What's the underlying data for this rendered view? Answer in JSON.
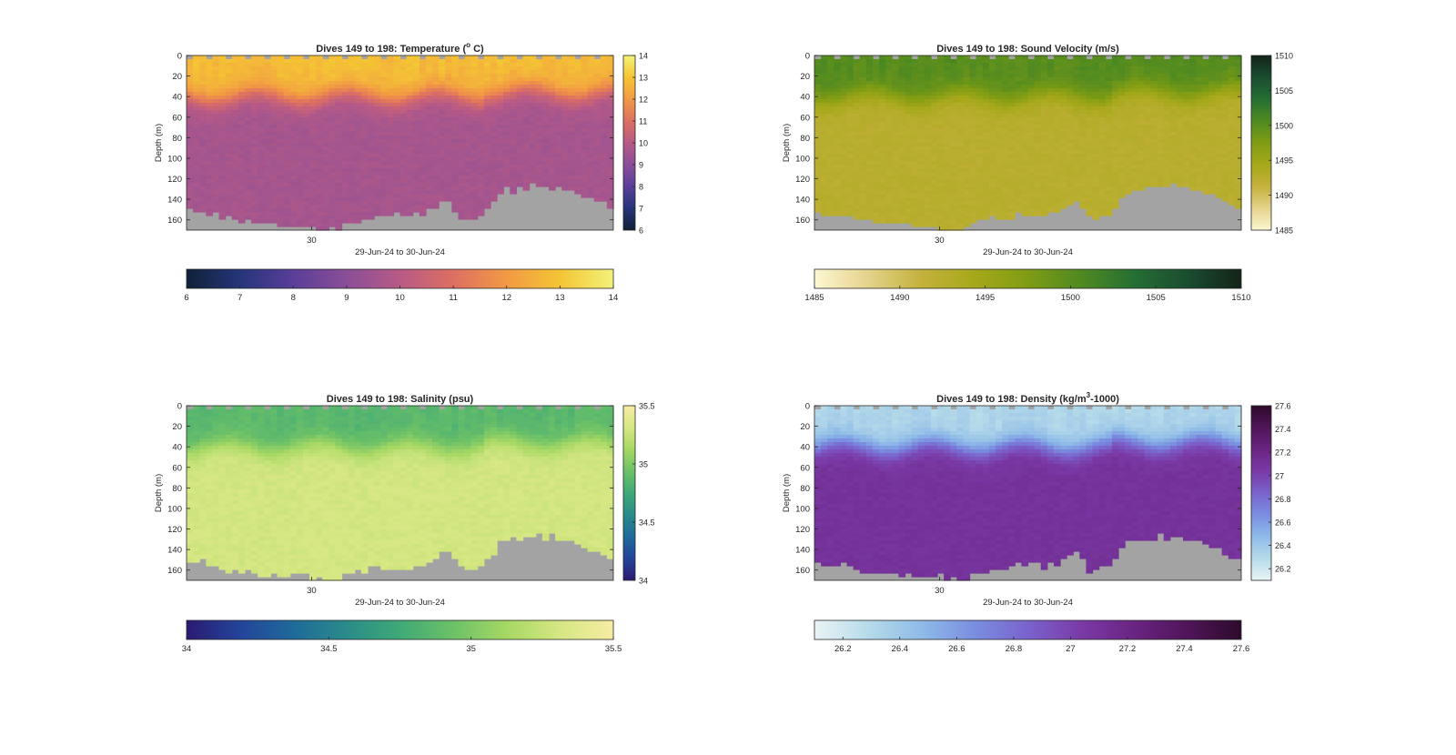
{
  "figure": {
    "date_range_label": "29-Jun-24 to 30-Jun-24",
    "x_tick_label": "30",
    "depth_label": "Depth (m)"
  },
  "chart_data": [
    {
      "id": "temperature",
      "type": "heatmap",
      "title_pre": "Dives 149 to 198: Temperature (",
      "title_sup": "o",
      "title_post": " C)",
      "xlabel": "29-Jun-24 to 30-Jun-24",
      "ylabel": "Depth (m)",
      "x_ticks": [
        "30"
      ],
      "y_ticks": [
        0,
        20,
        40,
        60,
        80,
        100,
        120,
        140,
        160
      ],
      "ylim": [
        0,
        170
      ],
      "dives": [
        149,
        198
      ],
      "colormap": [
        "#0f2136",
        "#25357a",
        "#5a3e99",
        "#8a4e98",
        "#b85a86",
        "#dd6f62",
        "#f29944",
        "#f4c534",
        "#f3f27a"
      ],
      "clim": [
        6,
        14
      ],
      "colorbar_ticks": [
        6,
        7,
        8,
        9,
        10,
        11,
        12,
        13,
        14
      ],
      "profile": {
        "surface": 12.8,
        "thermocline_depth": 40,
        "deep": 9.6
      },
      "nodata_color": "#a3a3a3"
    },
    {
      "id": "sound_velocity",
      "type": "heatmap",
      "title_pre": "Dives 149 to 198: Sound Velocity (m/s)",
      "title_sup": "",
      "title_post": "",
      "xlabel": "29-Jun-24 to 30-Jun-24",
      "ylabel": "Depth (m)",
      "x_ticks": [
        "30"
      ],
      "y_ticks": [
        0,
        20,
        40,
        60,
        80,
        100,
        120,
        140,
        160
      ],
      "ylim": [
        0,
        170
      ],
      "dives": [
        149,
        198
      ],
      "colormap": [
        "#fdf7d2",
        "#e4d38c",
        "#c4b13c",
        "#a6a81a",
        "#7f9c14",
        "#4f8a21",
        "#256e33",
        "#1a4d30",
        "#132318"
      ],
      "clim": [
        1485,
        1510
      ],
      "colorbar_ticks": [
        1485,
        1490,
        1495,
        1500,
        1505,
        1510
      ],
      "profile": {
        "surface": 1500.2,
        "thermocline_depth": 40,
        "deep": 1492.5
      },
      "nodata_color": "#a3a3a3"
    },
    {
      "id": "salinity",
      "type": "heatmap",
      "title_pre": "Dives 149 to 198: Salinity (psu)",
      "title_sup": "",
      "title_post": "",
      "xlabel": "29-Jun-24 to 30-Jun-24",
      "ylabel": "Depth (m)",
      "x_ticks": [
        "30"
      ],
      "y_ticks": [
        0,
        20,
        40,
        60,
        80,
        100,
        120,
        140,
        160
      ],
      "ylim": [
        0,
        170
      ],
      "dives": [
        149,
        198
      ],
      "colormap": [
        "#2b1a72",
        "#23449a",
        "#1f6a9a",
        "#2a8b8a",
        "#3fa977",
        "#6cc167",
        "#a6d864",
        "#d6e783",
        "#f7eca4"
      ],
      "clim": [
        34,
        35.5
      ],
      "colorbar_ticks": [
        34,
        34.5,
        35,
        35.5
      ],
      "profile": {
        "surface": 34.86,
        "thermocline_depth": 40,
        "deep": 35.3
      },
      "nodata_color": "#a3a3a3"
    },
    {
      "id": "density",
      "type": "heatmap",
      "title_pre": "Dives 149 to 198: Density (kg/m",
      "title_sup": "3",
      "title_post": "-1000)",
      "xlabel": "29-Jun-24 to 30-Jun-24",
      "ylabel": "Depth (m)",
      "x_ticks": [
        "30"
      ],
      "y_ticks": [
        0,
        20,
        40,
        60,
        80,
        100,
        120,
        140,
        160
      ],
      "ylim": [
        0,
        170
      ],
      "dives": [
        149,
        198
      ],
      "colormap": [
        "#eaf4f6",
        "#b6dbe9",
        "#8fbbe8",
        "#7a8ee0",
        "#7a63cc",
        "#7a3aa6",
        "#6a2482",
        "#4f1558",
        "#2d0a2b"
      ],
      "clim": [
        26.1,
        27.6
      ],
      "colorbar_ticks": [
        26.2,
        26.4,
        26.6,
        26.8,
        27,
        27.2,
        27.4,
        27.6
      ],
      "profile": {
        "surface": 26.32,
        "thermocline_depth": 40,
        "deep": 27.1
      },
      "nodata_color": "#a3a3a3"
    }
  ]
}
